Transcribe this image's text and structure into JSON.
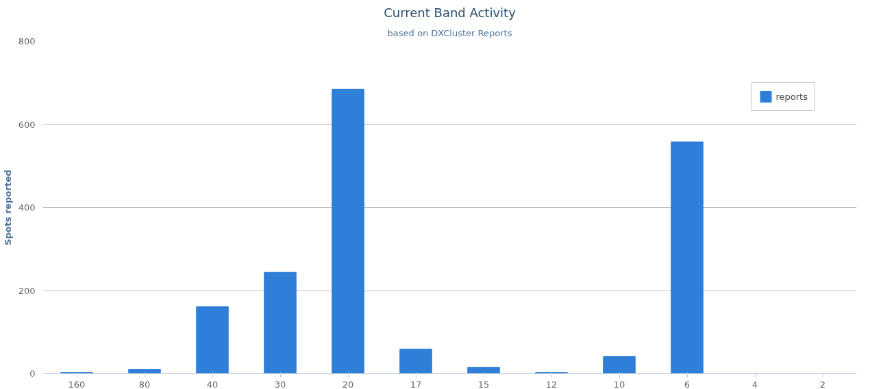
{
  "chart_data": {
    "type": "bar",
    "title": "Current Band Activity",
    "subtitle": "based on DXCluster Reports",
    "ylabel": "Spots reported",
    "categories": [
      "160",
      "80",
      "40",
      "30",
      "20",
      "17",
      "15",
      "12",
      "10",
      "6",
      "4",
      "2"
    ],
    "series": [
      {
        "name": "reports",
        "color": "#2f7ed8",
        "values": [
          3,
          10,
          161,
          244,
          685,
          59,
          15,
          3,
          41,
          558,
          0,
          0
        ]
      }
    ],
    "ylim": [
      0,
      800
    ],
    "yticks": [
      0,
      200,
      400,
      600,
      800
    ],
    "grid": "y",
    "legend": "top right"
  }
}
